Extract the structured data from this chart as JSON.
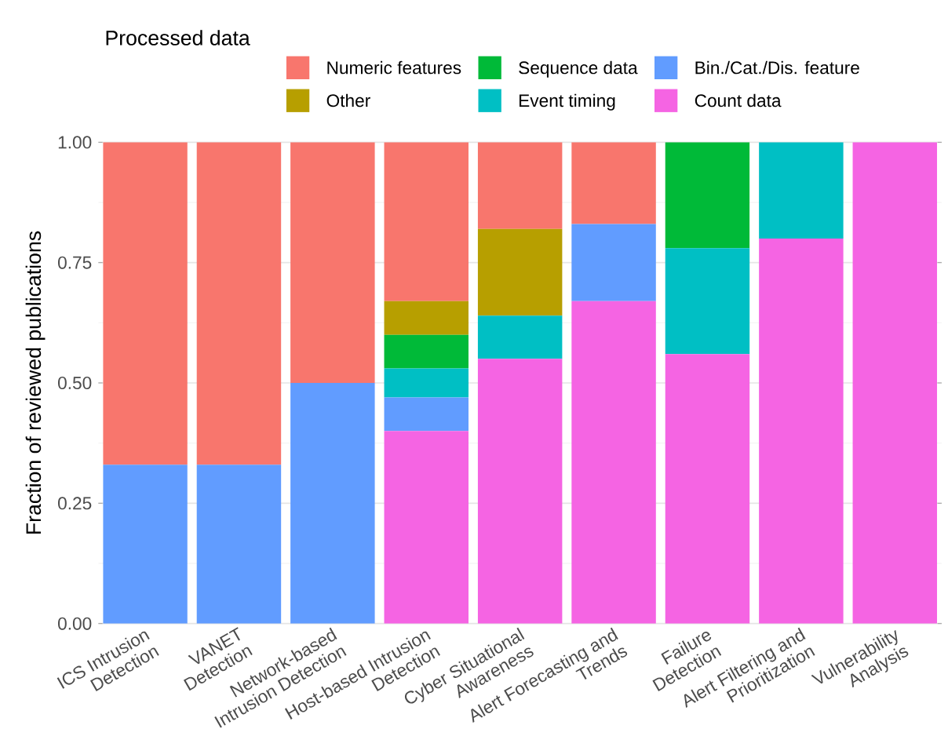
{
  "chart_data": {
    "type": "bar",
    "stacked": true,
    "ylabel": "Fraction of reviewed publications",
    "legend_title": "Processed data",
    "legend": "top",
    "categories": [
      "ICS Intrusion Detection",
      "VANET Detection",
      "Network-based Intrusion Detection",
      "Host-based Intrusion Detection",
      "Cyber Situational Awareness",
      "Alert Forecasting and Trends",
      "Failure Detection",
      "Alert Filtering and Prioritization",
      "Vulnerability Analysis"
    ],
    "ylim": [
      0,
      1
    ],
    "yticks": [
      {
        "value": 0,
        "label": "0.00"
      },
      {
        "value": 0.25,
        "label": "0.25"
      },
      {
        "value": 0.5,
        "label": "0.50"
      },
      {
        "value": 0.75,
        "label": "0.75"
      },
      {
        "value": 1,
        "label": "1.00"
      }
    ],
    "grid": "y",
    "series": [
      {
        "name": "Count data",
        "color": "#f564e3",
        "values": [
          0,
          0,
          0,
          0.4,
          0.55,
          0.67,
          0.56,
          0.8,
          1
        ]
      },
      {
        "name": "Bin./Cat./Dis. feature",
        "color": "#619cff",
        "values": [
          0.33,
          0.33,
          0.5,
          0.07,
          0,
          0.16,
          0,
          0,
          0
        ]
      },
      {
        "name": "Event timing",
        "color": "#00bfc4",
        "values": [
          0,
          0,
          0,
          0.06,
          0.09,
          0,
          0.22,
          0.2,
          0
        ]
      },
      {
        "name": "Sequence data",
        "color": "#00ba38",
        "values": [
          0,
          0,
          0,
          0.07,
          0,
          0,
          0.22,
          0,
          0
        ]
      },
      {
        "name": "Other",
        "color": "#b79f00",
        "values": [
          0,
          0,
          0,
          0.07,
          0.18,
          0,
          0,
          0,
          0
        ]
      },
      {
        "name": "Numeric features",
        "color": "#f8766d",
        "values": [
          0.67,
          0.67,
          0.5,
          0.33,
          0.18,
          0.17,
          0,
          0,
          0
        ]
      }
    ]
  }
}
